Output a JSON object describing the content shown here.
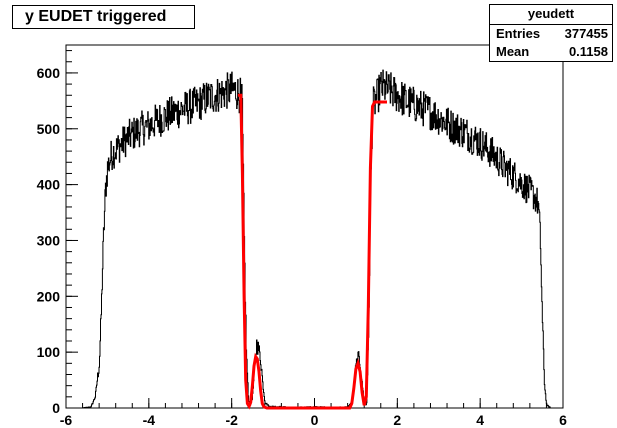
{
  "chart_data": {
    "type": "histogram",
    "title": "y EUDET triggered",
    "xlim": [
      -6,
      6
    ],
    "ylim": [
      0,
      650
    ],
    "x_ticks": [
      -6,
      -4,
      -2,
      0,
      2,
      4,
      6
    ],
    "y_ticks": [
      0,
      100,
      200,
      300,
      400,
      500,
      600
    ],
    "stats": {
      "name": "yeudett",
      "entries_label": "Entries",
      "entries": "377455",
      "mean_label": "Mean",
      "mean": "0.1158"
    },
    "series": [
      {
        "type": "histogram",
        "color": "#000000",
        "points": [
          [
            -5.6,
            0
          ],
          [
            -5.4,
            2
          ],
          [
            -5.3,
            20
          ],
          [
            -5.2,
            80
          ],
          [
            -5.15,
            180
          ],
          [
            -5.1,
            300
          ],
          [
            -5.05,
            390
          ],
          [
            -5.0,
            430
          ],
          [
            -4.9,
            455
          ],
          [
            -4.7,
            470
          ],
          [
            -4.5,
            485
          ],
          [
            -4.2,
            500
          ],
          [
            -4.0,
            505
          ],
          [
            -3.8,
            515
          ],
          [
            -3.5,
            525
          ],
          [
            -3.2,
            535
          ],
          [
            -3.0,
            540
          ],
          [
            -2.8,
            545
          ],
          [
            -2.6,
            555
          ],
          [
            -2.4,
            560
          ],
          [
            -2.2,
            565
          ],
          [
            -2.0,
            570
          ],
          [
            -1.9,
            568
          ],
          [
            -1.8,
            560
          ],
          [
            -1.75,
            545
          ],
          [
            -1.7,
            300
          ],
          [
            -1.65,
            100
          ],
          [
            -1.6,
            15
          ],
          [
            -1.55,
            5
          ],
          [
            -1.5,
            20
          ],
          [
            -1.45,
            70
          ],
          [
            -1.4,
            115
          ],
          [
            -1.35,
            105
          ],
          [
            -1.3,
            85
          ],
          [
            -1.25,
            40
          ],
          [
            -1.2,
            10
          ],
          [
            -1.1,
            3
          ],
          [
            -0.8,
            2
          ],
          [
            -0.5,
            1
          ],
          [
            0.0,
            2
          ],
          [
            0.5,
            1
          ],
          [
            0.8,
            2
          ],
          [
            0.9,
            10
          ],
          [
            0.95,
            40
          ],
          [
            1.0,
            75
          ],
          [
            1.05,
            90
          ],
          [
            1.1,
            80
          ],
          [
            1.15,
            40
          ],
          [
            1.2,
            10
          ],
          [
            1.25,
            5
          ],
          [
            1.3,
            120
          ],
          [
            1.35,
            400
          ],
          [
            1.4,
            540
          ],
          [
            1.5,
            555
          ],
          [
            1.6,
            575
          ],
          [
            1.8,
            570
          ],
          [
            2.0,
            560
          ],
          [
            2.2,
            550
          ],
          [
            2.5,
            540
          ],
          [
            2.8,
            530
          ],
          [
            3.0,
            520
          ],
          [
            3.3,
            505
          ],
          [
            3.6,
            495
          ],
          [
            4.0,
            475
          ],
          [
            4.3,
            455
          ],
          [
            4.6,
            430
          ],
          [
            4.9,
            410
          ],
          [
            5.1,
            395
          ],
          [
            5.3,
            380
          ],
          [
            5.4,
            365
          ],
          [
            5.45,
            300
          ],
          [
            5.5,
            150
          ],
          [
            5.55,
            40
          ],
          [
            5.6,
            5
          ],
          [
            5.7,
            0
          ]
        ]
      },
      {
        "type": "fit",
        "color": "#ff0000",
        "points": [
          [
            -1.85,
            560
          ],
          [
            -1.78,
            560
          ],
          [
            -1.74,
            420
          ],
          [
            -1.7,
            200
          ],
          [
            -1.66,
            50
          ],
          [
            -1.62,
            8
          ],
          [
            -1.58,
            3
          ],
          [
            -1.54,
            10
          ],
          [
            -1.5,
            40
          ],
          [
            -1.46,
            75
          ],
          [
            -1.42,
            92
          ],
          [
            -1.38,
            88
          ],
          [
            -1.34,
            65
          ],
          [
            -1.3,
            30
          ],
          [
            -1.26,
            8
          ],
          [
            -1.22,
            2
          ],
          [
            -1.15,
            0
          ],
          [
            0.85,
            0
          ],
          [
            0.9,
            8
          ],
          [
            0.95,
            35
          ],
          [
            1.0,
            70
          ],
          [
            1.05,
            80
          ],
          [
            1.1,
            65
          ],
          [
            1.15,
            28
          ],
          [
            1.2,
            5
          ],
          [
            1.25,
            20
          ],
          [
            1.3,
            180
          ],
          [
            1.35,
            430
          ],
          [
            1.4,
            540
          ],
          [
            1.45,
            548
          ],
          [
            1.6,
            548
          ],
          [
            1.75,
            548
          ]
        ]
      }
    ]
  }
}
